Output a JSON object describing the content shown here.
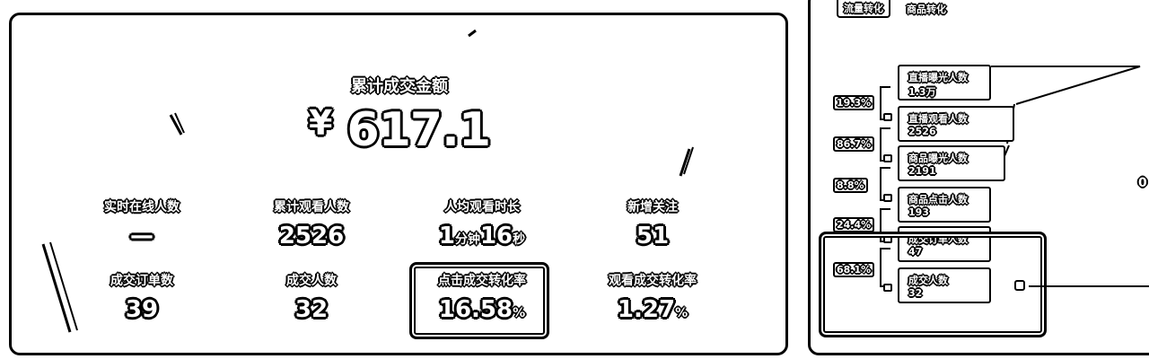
{
  "summary": {
    "title": "累计成交金额",
    "currency": "¥",
    "amount": "617.1"
  },
  "metrics": [
    {
      "label": "实时在线人数",
      "value": "—"
    },
    {
      "label": "累计观看人数",
      "value": "2526"
    },
    {
      "label": "人均观看时长",
      "value1": "1",
      "unit1": "分钟",
      "value2": "16",
      "unit2": "秒"
    },
    {
      "label": "新增关注",
      "value": "51"
    },
    {
      "label": "成交订单数",
      "value": "39"
    },
    {
      "label": "成交人数",
      "value": "32"
    },
    {
      "label": "点击成交转化率",
      "value": "16.58",
      "unit": "%"
    },
    {
      "label": "观看成交转化率",
      "value": "1.27",
      "unit": "%"
    }
  ],
  "tabs": [
    "流量转化",
    "商品转化"
  ],
  "funnel": {
    "steps": [
      {
        "label": "直播曝光人数",
        "value": "1.3万"
      },
      {
        "label": "直播观看人数",
        "value": "2526"
      },
      {
        "label": "商品曝光人数",
        "value": "2191"
      },
      {
        "label": "商品点击人数",
        "value": "193"
      },
      {
        "label": "成交订单人数",
        "value": "47"
      },
      {
        "label": "成交人数",
        "value": "32"
      }
    ],
    "rates": [
      "19.3%",
      "86.7%",
      "8.8%",
      "24.4%",
      "68.1%"
    ],
    "edge_text": "0"
  }
}
